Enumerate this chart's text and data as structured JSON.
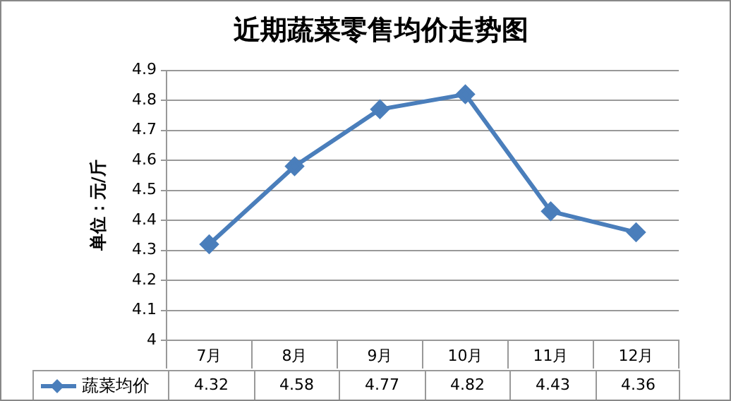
{
  "chart_data": {
    "type": "line",
    "title": "近期蔬菜零售均价走势图",
    "ylabel": "单位：元/斤",
    "categories": [
      "7月",
      "8月",
      "9月",
      "10月",
      "11月",
      "12月"
    ],
    "series": [
      {
        "name": "蔬菜均价",
        "color": "#4a7ebb",
        "values": [
          4.32,
          4.58,
          4.77,
          4.82,
          4.43,
          4.36
        ]
      }
    ],
    "ylim": [
      4,
      4.9
    ],
    "yticks": [
      4,
      4.1,
      4.2,
      4.3,
      4.4,
      4.5,
      4.6,
      4.7,
      4.8,
      4.9
    ],
    "grid": "y",
    "legend": "bottom",
    "marker": "diamond",
    "line_style": "solid",
    "data_labels": true
  }
}
